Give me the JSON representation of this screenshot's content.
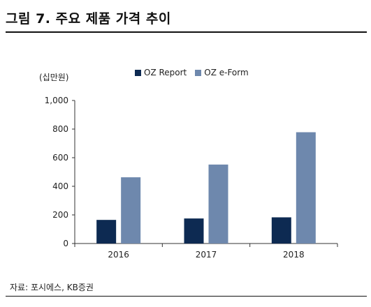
{
  "figure": {
    "title": "그림 7. 주요 제품 가격 추이",
    "source": "자료: 포시에스, KB증권"
  },
  "colors": {
    "oz_report": "#0d2a52",
    "oz_eform": "#6e88ad",
    "axis": "#333333"
  },
  "chart_data": {
    "type": "bar",
    "unit_label": "(십만원)",
    "categories": [
      "2016",
      "2017",
      "2018"
    ],
    "series": [
      {
        "name": "OZ Report",
        "values": [
          165,
          175,
          183
        ]
      },
      {
        "name": "OZ e-Form",
        "values": [
          463,
          552,
          778
        ]
      }
    ],
    "ylim": [
      0,
      1000
    ],
    "yticks": [
      0,
      200,
      400,
      600,
      800,
      1000
    ],
    "ytick_labels": [
      "0",
      "200",
      "400",
      "600",
      "800",
      "1,000"
    ],
    "legend_position": "top",
    "grid": false
  }
}
